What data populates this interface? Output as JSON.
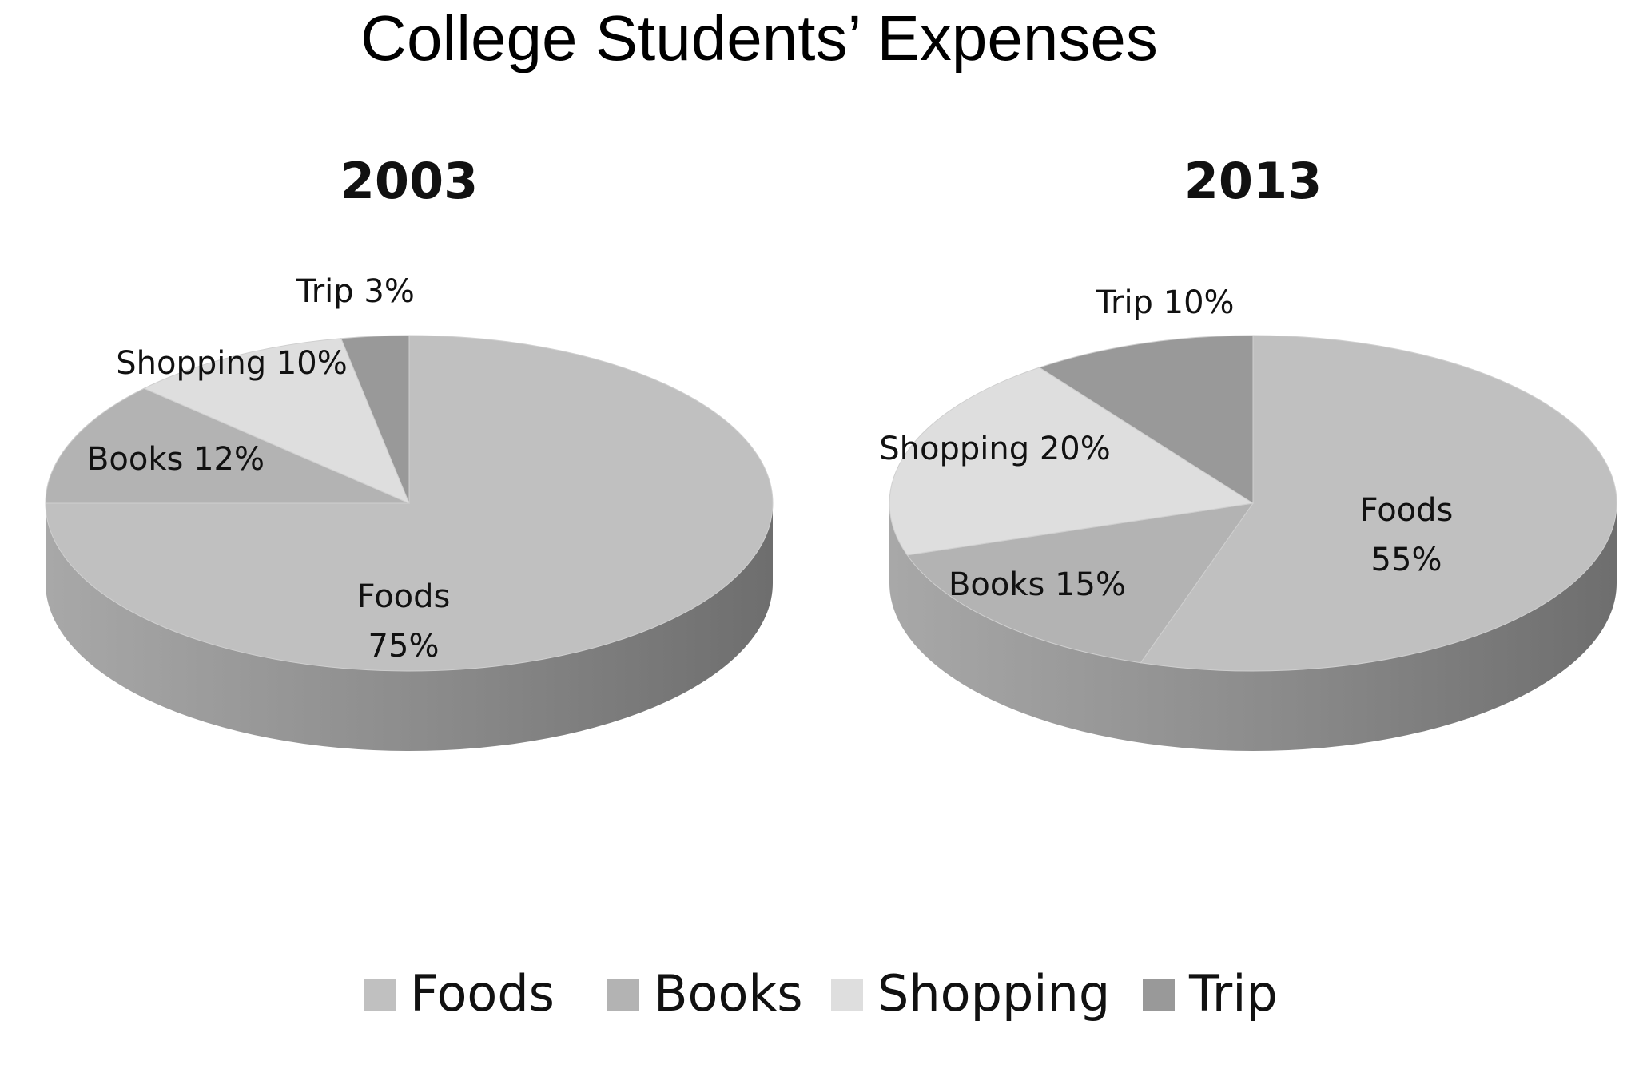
{
  "title": "College Students’ Expenses",
  "colors": {
    "Foods": "#c0c0c0",
    "Books": "#b3b3b3",
    "Shopping": "#dedede",
    "Trip": "#999999",
    "side_dark": "#6e6e6e",
    "side_light": "#a8a8a8"
  },
  "legend": [
    {
      "label": "Foods",
      "color": "#c0c0c0"
    },
    {
      "label": "Books",
      "color": "#b3b3b3"
    },
    {
      "label": "Shopping",
      "color": "#dedede"
    },
    {
      "label": "Trip",
      "color": "#999999"
    }
  ],
  "chart_data": [
    {
      "type": "pie",
      "title": "2003",
      "categories": [
        "Foods",
        "Books",
        "Shopping",
        "Trip"
      ],
      "values": [
        75,
        12,
        10,
        3
      ],
      "labels": [
        "Foods\n75%",
        "Books 12%",
        "Shopping 10%",
        "Trip 3%"
      ],
      "legend_position": "bottom"
    },
    {
      "type": "pie",
      "title": "2013",
      "categories": [
        "Foods",
        "Books",
        "Shopping",
        "Trip"
      ],
      "values": [
        55,
        15,
        20,
        10
      ],
      "labels": [
        "Foods\n55%",
        "Books 15%",
        "Shopping 20%",
        "Trip 10%"
      ],
      "legend_position": "bottom"
    }
  ]
}
